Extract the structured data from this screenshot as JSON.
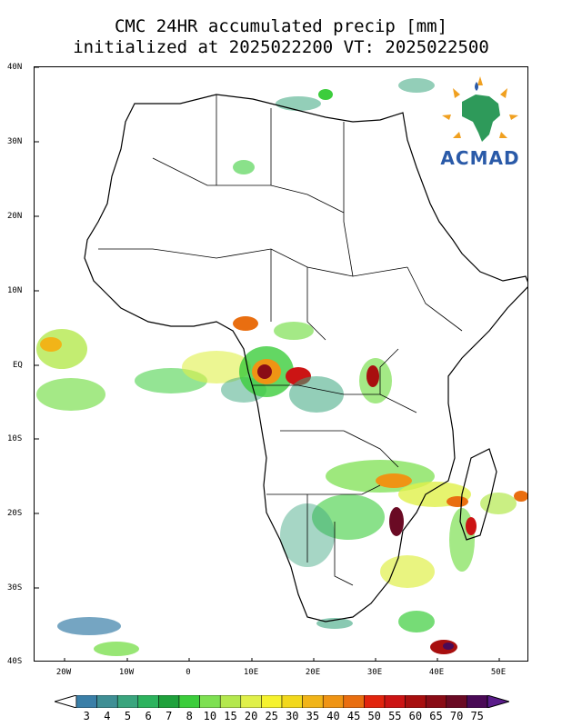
{
  "title": {
    "line1": "CMC 24HR accumulated precip [mm]",
    "line2": "initialized at 2025022200 VT: 2025022500"
  },
  "logo": {
    "text": "ACMAD",
    "icon": "africa-logo-icon"
  },
  "axes": {
    "lat_labels": [
      "40N",
      "30N",
      "20N",
      "10N",
      "EQ",
      "10S",
      "20S",
      "30S",
      "40S"
    ],
    "lon_labels": [
      "20W",
      "10W",
      "0",
      "10E",
      "20E",
      "30E",
      "40E",
      "50E"
    ]
  },
  "colorbar": {
    "labels": [
      "3",
      "4",
      "5",
      "6",
      "7",
      "8",
      "10",
      "15",
      "20",
      "25",
      "30",
      "35",
      "40",
      "45",
      "50",
      "55",
      "60",
      "65",
      "70",
      "75"
    ],
    "colors": [
      "#3a7fa8",
      "#3f8f95",
      "#3aa57e",
      "#2db35e",
      "#1fa13c",
      "#3ccd3c",
      "#7ee052",
      "#b4e84e",
      "#e0f04a",
      "#f6f22e",
      "#f2d81c",
      "#f1b418",
      "#ef9414",
      "#e96e10",
      "#e2250e",
      "#cc1414",
      "#a80f0f",
      "#8a0c16",
      "#6a0a24",
      "#4a0a56"
    ],
    "under_color": "#ffffff",
    "over_color": "#5a1c8a"
  },
  "legend": {
    "units": "mm"
  }
}
